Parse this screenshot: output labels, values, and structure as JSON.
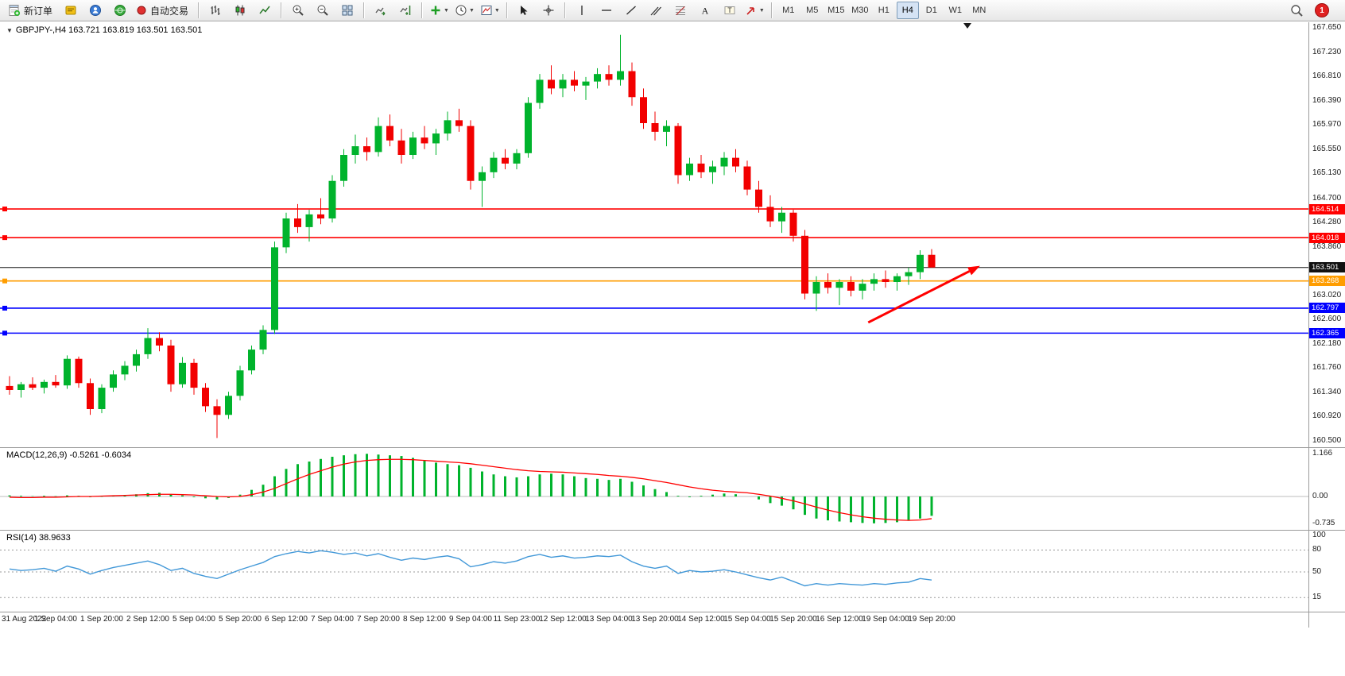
{
  "toolbar": {
    "new_order_label": "新订单",
    "auto_trading_label": "自动交易",
    "timeframes": [
      "M1",
      "M5",
      "M15",
      "M30",
      "H1",
      "H4",
      "D1",
      "W1",
      "MN"
    ],
    "active_timeframe": "H4",
    "notification_count": "1"
  },
  "quote_line": "GBPJPY-,H4 163.721 163.819 163.501 163.501",
  "colors": {
    "bull": "#00b32c",
    "bear": "#f20000",
    "macd_hist": "#00b32c",
    "macd_signal": "#ff0000",
    "rsi": "#4298d8",
    "grid": "#9a9a9a"
  },
  "chart_data": {
    "type": "candlestick",
    "symbol": "GBPJPY-",
    "timeframe": "H4",
    "current_open": 163.721,
    "current_high": 163.819,
    "current_low": 163.501,
    "current_close": 163.501,
    "y_axis_max": 167.65,
    "y_axis_min": 160.5,
    "y_ticks": [
      "167.650",
      "167.230",
      "166.810",
      "166.390",
      "165.970",
      "165.550",
      "165.130",
      "164.700",
      "164.280",
      "163.860",
      "163.020",
      "162.600",
      "162.180",
      "161.760",
      "161.340",
      "160.920",
      "160.500"
    ],
    "label_every": 4,
    "time_labels": [
      "31 Aug 2022",
      "1 Sep 04:00",
      "1 Sep 20:00",
      "2 Sep 12:00",
      "5 Sep 04:00",
      "5 Sep 20:00",
      "6 Sep 12:00",
      "7 Sep 04:00",
      "7 Sep 20:00",
      "8 Sep 12:00",
      "9 Sep 04:00",
      "11 Sep 23:00",
      "12 Sep 12:00",
      "13 Sep 04:00",
      "13 Sep 20:00",
      "14 Sep 12:00",
      "15 Sep 04:00",
      "15 Sep 20:00",
      "16 Sep 12:00",
      "19 Sep 04:00",
      "19 Sep 20:00"
    ],
    "ohlc": [
      [
        161.45,
        161.62,
        161.3,
        161.38
      ],
      [
        161.38,
        161.52,
        161.25,
        161.48
      ],
      [
        161.48,
        161.6,
        161.38,
        161.42
      ],
      [
        161.42,
        161.56,
        161.32,
        161.52
      ],
      [
        161.52,
        161.64,
        161.42,
        161.46
      ],
      [
        161.46,
        161.98,
        161.4,
        161.92
      ],
      [
        161.92,
        161.96,
        161.42,
        161.5
      ],
      [
        161.5,
        161.58,
        160.95,
        161.05
      ],
      [
        161.05,
        161.48,
        160.98,
        161.42
      ],
      [
        161.42,
        161.72,
        161.35,
        161.65
      ],
      [
        161.65,
        161.88,
        161.55,
        161.8
      ],
      [
        161.8,
        162.08,
        161.7,
        162.0
      ],
      [
        162.0,
        162.45,
        161.92,
        162.28
      ],
      [
        162.28,
        162.38,
        162.05,
        162.15
      ],
      [
        162.15,
        162.25,
        161.35,
        161.48
      ],
      [
        161.48,
        161.95,
        161.42,
        161.85
      ],
      [
        161.85,
        161.92,
        161.3,
        161.42
      ],
      [
        161.42,
        161.5,
        161.0,
        161.1
      ],
      [
        161.1,
        161.22,
        160.55,
        160.95
      ],
      [
        160.95,
        161.35,
        160.88,
        161.28
      ],
      [
        161.28,
        161.8,
        161.2,
        161.72
      ],
      [
        161.72,
        162.15,
        161.65,
        162.08
      ],
      [
        162.08,
        162.5,
        162.0,
        162.42
      ],
      [
        162.42,
        163.95,
        162.35,
        163.85
      ],
      [
        163.85,
        164.45,
        163.75,
        164.35
      ],
      [
        164.35,
        164.6,
        164.1,
        164.2
      ],
      [
        164.2,
        164.5,
        163.95,
        164.42
      ],
      [
        164.42,
        164.7,
        164.25,
        164.35
      ],
      [
        164.35,
        165.1,
        164.28,
        165.0
      ],
      [
        165.0,
        165.55,
        164.9,
        165.45
      ],
      [
        165.45,
        165.8,
        165.3,
        165.6
      ],
      [
        165.6,
        165.75,
        165.35,
        165.5
      ],
      [
        165.5,
        166.1,
        165.42,
        165.95
      ],
      [
        165.95,
        166.15,
        165.6,
        165.7
      ],
      [
        165.7,
        165.9,
        165.3,
        165.45
      ],
      [
        165.45,
        165.85,
        165.38,
        165.75
      ],
      [
        165.75,
        165.95,
        165.55,
        165.65
      ],
      [
        165.65,
        165.9,
        165.45,
        165.82
      ],
      [
        165.82,
        166.2,
        165.7,
        166.05
      ],
      [
        166.05,
        166.25,
        165.85,
        165.95
      ],
      [
        165.95,
        166.05,
        164.85,
        165.0
      ],
      [
        165.0,
        165.25,
        164.55,
        165.15
      ],
      [
        165.15,
        165.5,
        165.05,
        165.4
      ],
      [
        165.4,
        165.55,
        165.2,
        165.3
      ],
      [
        165.3,
        165.55,
        165.2,
        165.48
      ],
      [
        165.48,
        166.45,
        165.4,
        166.35
      ],
      [
        166.35,
        166.85,
        166.25,
        166.75
      ],
      [
        166.75,
        167.0,
        166.5,
        166.6
      ],
      [
        166.6,
        166.85,
        166.45,
        166.75
      ],
      [
        166.75,
        166.9,
        166.55,
        166.65
      ],
      [
        166.65,
        166.8,
        166.4,
        166.72
      ],
      [
        166.72,
        166.95,
        166.6,
        166.85
      ],
      [
        166.85,
        167.0,
        166.65,
        166.75
      ],
      [
        166.75,
        167.53,
        166.65,
        166.9
      ],
      [
        166.9,
        167.05,
        166.3,
        166.45
      ],
      [
        166.45,
        166.6,
        165.9,
        166.0
      ],
      [
        166.0,
        166.2,
        165.7,
        165.85
      ],
      [
        165.85,
        166.05,
        165.6,
        165.95
      ],
      [
        165.95,
        166.0,
        164.95,
        165.1
      ],
      [
        165.1,
        165.4,
        165.0,
        165.3
      ],
      [
        165.3,
        165.45,
        165.05,
        165.15
      ],
      [
        165.15,
        165.35,
        164.95,
        165.25
      ],
      [
        165.25,
        165.5,
        165.1,
        165.4
      ],
      [
        165.4,
        165.55,
        165.15,
        165.25
      ],
      [
        165.25,
        165.35,
        164.75,
        164.85
      ],
      [
        164.85,
        165.0,
        164.45,
        164.55
      ],
      [
        164.55,
        164.75,
        164.2,
        164.3
      ],
      [
        164.3,
        164.55,
        164.1,
        164.45
      ],
      [
        164.45,
        164.5,
        163.95,
        164.05
      ],
      [
        164.05,
        164.15,
        162.95,
        163.05
      ],
      [
        163.05,
        163.35,
        162.75,
        163.25
      ],
      [
        163.25,
        163.4,
        163.05,
        163.15
      ],
      [
        163.15,
        163.3,
        162.85,
        163.25
      ],
      [
        163.25,
        163.35,
        163.0,
        163.1
      ],
      [
        163.1,
        163.3,
        162.95,
        163.22
      ],
      [
        163.22,
        163.4,
        163.1,
        163.3
      ],
      [
        163.3,
        163.45,
        163.15,
        163.25
      ],
      [
        163.25,
        163.4,
        163.1,
        163.35
      ],
      [
        163.35,
        163.5,
        163.2,
        163.42
      ],
      [
        163.42,
        163.8,
        163.3,
        163.72
      ],
      [
        163.721,
        163.819,
        163.501,
        163.501
      ]
    ],
    "hlines": [
      {
        "price": 164.514,
        "label": "164.514",
        "color": "#ff0000",
        "width": 1.6,
        "anchor": true
      },
      {
        "price": 164.018,
        "label": "164.018",
        "color": "#ff0000",
        "width": 1.6,
        "anchor": true
      },
      {
        "price": 163.501,
        "label": "163.501",
        "color": "#111111",
        "width": 1,
        "anchor": false
      },
      {
        "price": 163.268,
        "label": "163.268",
        "color": "#ff9d00",
        "width": 1.6,
        "anchor": true
      },
      {
        "price": 162.797,
        "label": "162.797",
        "color": "#0000ff",
        "width": 1.6,
        "anchor": true
      },
      {
        "price": 162.365,
        "label": "162.365",
        "color": "#0000ff",
        "width": 1.6,
        "anchor": true
      }
    ],
    "trend_arrow": {
      "from": {
        "index": 74.5,
        "price": 162.55
      },
      "to": {
        "index": 84.2,
        "price": 163.53
      },
      "color": "#ff0000"
    },
    "macd": {
      "label": "MACD(12,26,9) -0.5261 -0.6034",
      "ticks": [
        "1.166",
        "0.00",
        "-0.735"
      ],
      "max": 1.166,
      "min": -0.735,
      "histogram": [
        0.03,
        0.02,
        0.01,
        0.02,
        0.01,
        0.03,
        0.02,
        -0.02,
        -0.01,
        0.02,
        0.04,
        0.06,
        0.09,
        0.1,
        0.05,
        0.03,
        -0.02,
        -0.05,
        -0.08,
        -0.04,
        0.05,
        0.18,
        0.32,
        0.55,
        0.75,
        0.88,
        0.95,
        1.02,
        1.08,
        1.12,
        1.15,
        1.16,
        1.14,
        1.12,
        1.1,
        1.05,
        0.98,
        0.92,
        0.88,
        0.85,
        0.78,
        0.68,
        0.6,
        0.55,
        0.52,
        0.55,
        0.6,
        0.62,
        0.6,
        0.55,
        0.5,
        0.48,
        0.45,
        0.48,
        0.4,
        0.3,
        0.2,
        0.12,
        0.02,
        -0.02,
        0.02,
        0.05,
        0.08,
        0.06,
        0.0,
        -0.08,
        -0.18,
        -0.25,
        -0.35,
        -0.5,
        -0.6,
        -0.65,
        -0.68,
        -0.7,
        -0.72,
        -0.73,
        -0.72,
        -0.7,
        -0.66,
        -0.6,
        -0.5261
      ],
      "signal": [
        -0.02,
        -0.03,
        -0.03,
        -0.02,
        -0.02,
        -0.01,
        0.0,
        0.0,
        0.01,
        0.02,
        0.03,
        0.04,
        0.05,
        0.06,
        0.06,
        0.05,
        0.04,
        0.02,
        0.0,
        -0.01,
        0.0,
        0.05,
        0.12,
        0.22,
        0.35,
        0.48,
        0.6,
        0.7,
        0.8,
        0.88,
        0.94,
        0.98,
        1.0,
        1.01,
        1.01,
        1.0,
        0.98,
        0.96,
        0.94,
        0.92,
        0.89,
        0.85,
        0.81,
        0.77,
        0.73,
        0.7,
        0.68,
        0.67,
        0.66,
        0.64,
        0.62,
        0.6,
        0.57,
        0.55,
        0.52,
        0.48,
        0.43,
        0.38,
        0.32,
        0.26,
        0.21,
        0.17,
        0.14,
        0.12,
        0.1,
        0.06,
        0.01,
        -0.05,
        -0.12,
        -0.2,
        -0.29,
        -0.37,
        -0.44,
        -0.5,
        -0.55,
        -0.59,
        -0.62,
        -0.64,
        -0.65,
        -0.64,
        -0.6034
      ]
    },
    "rsi": {
      "label": "RSI(14) 38.9633",
      "last_value": 38.9633,
      "levels": [
        {
          "label": "100",
          "value": 100,
          "line": false
        },
        {
          "label": "80",
          "value": 80,
          "line": true
        },
        {
          "label": "50",
          "value": 50,
          "line": true
        },
        {
          "label": "15",
          "value": 15,
          "line": true
        }
      ],
      "values": [
        54,
        52,
        53,
        55,
        51,
        58,
        54,
        47,
        52,
        56,
        59,
        62,
        65,
        60,
        52,
        55,
        48,
        44,
        41,
        47,
        53,
        58,
        63,
        71,
        75,
        78,
        76,
        79,
        77,
        74,
        76,
        72,
        75,
        70,
        66,
        69,
        67,
        70,
        72,
        68,
        57,
        60,
        64,
        62,
        65,
        71,
        74,
        70,
        72,
        69,
        70,
        72,
        71,
        73,
        64,
        58,
        55,
        58,
        48,
        52,
        50,
        51,
        53,
        50,
        46,
        42,
        39,
        43,
        37,
        31,
        34,
        32,
        34,
        33,
        32,
        34,
        33,
        35,
        36,
        41,
        38.9633
      ]
    }
  }
}
